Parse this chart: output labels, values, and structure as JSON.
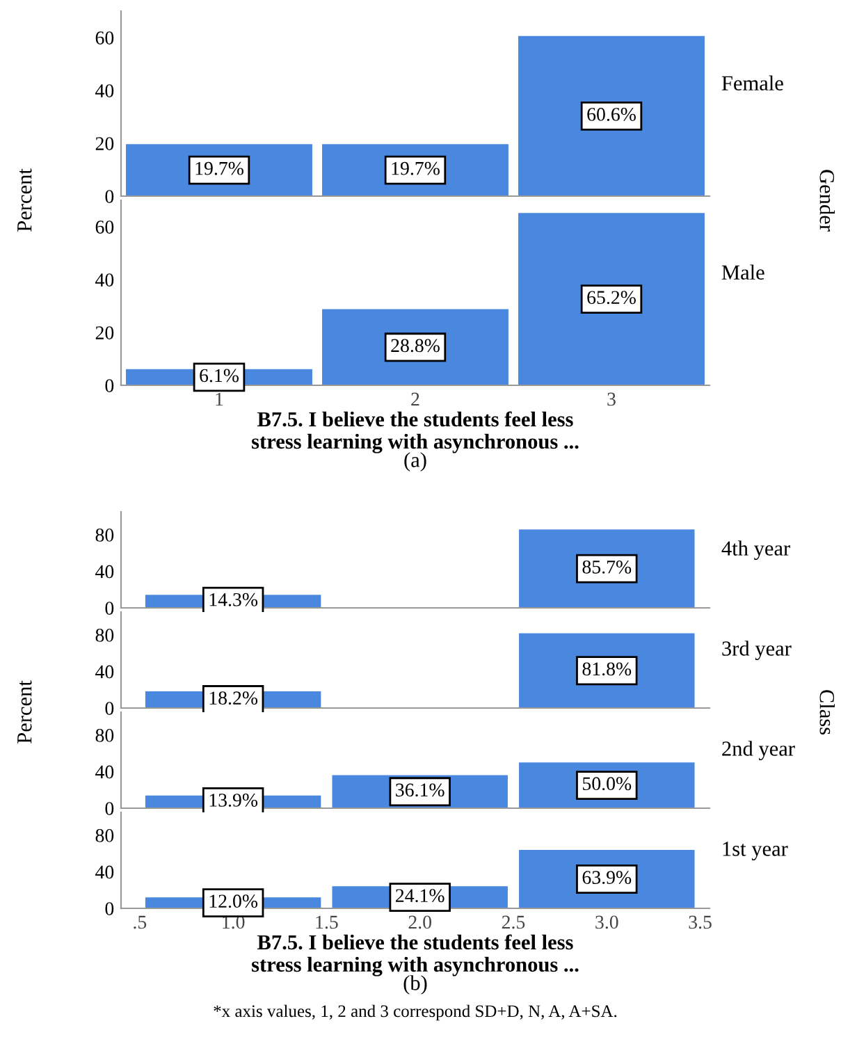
{
  "chart_data": [
    {
      "type": "bar",
      "categories": [
        "1",
        "2",
        "3"
      ],
      "series": [
        {
          "name": "Female",
          "color": "#4a88e0",
          "values": [
            19.7,
            19.7,
            60.6
          ],
          "value_labels": [
            "19.7%",
            "19.7%",
            "60.6%"
          ]
        }
      ],
      "ylim": [
        0,
        70
      ],
      "yticks": [
        0,
        20,
        40,
        60
      ],
      "tick_labels": "y",
      "ylabel": "Percent",
      "annotations": [
        "Gender"
      ]
    },
    {
      "type": "bar",
      "categories": [
        "1",
        "2",
        "3"
      ],
      "series": [
        {
          "name": "Male",
          "color": "#4a88e0",
          "values": [
            6.1,
            28.8,
            65.2
          ],
          "value_labels": [
            "6.1%",
            "28.8%",
            "65.2%"
          ]
        }
      ],
      "ylim": [
        0,
        70
      ],
      "yticks": [
        0,
        20,
        40,
        60
      ],
      "xlabel": "B7.5. I believe the students feel less\nstress learning with asynchronous ...",
      "annotations": [
        "(a)"
      ]
    },
    {
      "type": "bar",
      "x": [
        1,
        2,
        3
      ],
      "series": [
        {
          "name": "4th year",
          "color": "#4a88e0",
          "values": [
            14.3,
            null,
            85.7
          ],
          "value_labels": [
            "14.3%",
            null,
            "85.7%"
          ]
        }
      ],
      "xlim": [
        0.4,
        3.55
      ],
      "ylim": [
        0,
        105
      ],
      "yticks": [
        0,
        40,
        80
      ],
      "tick_labels": "y",
      "ylabel": "Percent",
      "annotations": [
        "Class"
      ]
    },
    {
      "type": "bar",
      "x": [
        1,
        2,
        3
      ],
      "series": [
        {
          "name": "3rd year",
          "color": "#4a88e0",
          "values": [
            18.2,
            null,
            81.8
          ],
          "value_labels": [
            "18.2%",
            null,
            "81.8%"
          ]
        }
      ],
      "xlim": [
        0.4,
        3.55
      ],
      "ylim": [
        0,
        105
      ],
      "yticks": [
        0,
        40,
        80
      ],
      "tick_labels": "y"
    },
    {
      "type": "bar",
      "x": [
        1,
        2,
        3
      ],
      "series": [
        {
          "name": "2nd year",
          "color": "#4a88e0",
          "values": [
            13.9,
            36.1,
            50.0
          ],
          "value_labels": [
            "13.9%",
            "36.1%",
            "50.0%"
          ]
        }
      ],
      "xlim": [
        0.4,
        3.55
      ],
      "ylim": [
        0,
        105
      ],
      "yticks": [
        0,
        40,
        80
      ],
      "tick_labels": "y"
    },
    {
      "type": "bar",
      "x": [
        1,
        2,
        3
      ],
      "series": [
        {
          "name": "1st year",
          "color": "#4a88e0",
          "values": [
            12.0,
            24.1,
            63.9
          ],
          "value_labels": [
            "12.0%",
            "24.1%",
            "63.9%"
          ]
        }
      ],
      "xlim": [
        0.4,
        3.55
      ],
      "xticks": [
        {
          "value": 0.5,
          "label": ".5"
        },
        {
          "value": 1.0,
          "label": "1.0"
        },
        {
          "value": 1.5,
          "label": "1.5"
        },
        {
          "value": 2.0,
          "label": "2.0"
        },
        {
          "value": 2.5,
          "label": "2.5"
        },
        {
          "value": 3.0,
          "label": "3.0"
        },
        {
          "value": 3.5,
          "label": "3.5"
        }
      ],
      "ylim": [
        0,
        105
      ],
      "yticks": [
        0,
        40,
        80
      ],
      "xlabel": "B7.5. I believe the students feel less\nstress learning with asynchronous ...",
      "annotations": [
        "(b)",
        "*x axis values, 1, 2 and 3 correspond SD+D, N, A, A+SA."
      ]
    }
  ]
}
